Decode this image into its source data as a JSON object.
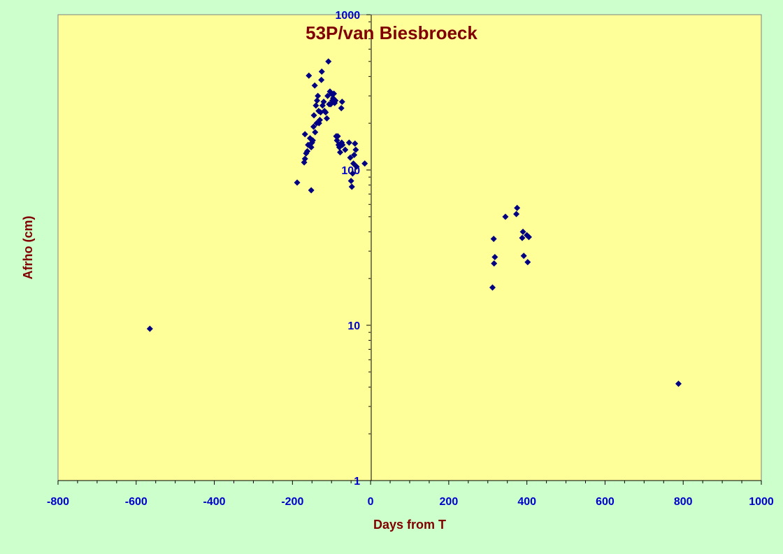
{
  "chart_data": {
    "type": "scatter",
    "title": "53P/van Biesbroeck",
    "xlabel": "Days from T",
    "ylabel": "Afrho (cm)",
    "xlim": [
      -800,
      1000
    ],
    "ylim": [
      1,
      1000
    ],
    "y_scale": "log",
    "grid": false,
    "x_ticks": [
      "-800",
      "-600",
      "-400",
      "-200",
      "0",
      "200",
      "400",
      "600",
      "800",
      "1000"
    ],
    "y_ticks": [
      "1",
      "10",
      "100",
      "1000"
    ],
    "colors": {
      "background": "#ccffcc",
      "plot_area": "#ffff99",
      "marker": "#000080",
      "title": "#800000",
      "ticks": "#0000cc"
    },
    "series": [
      {
        "points": [
          [
            -565,
            9.5
          ],
          [
            -188,
            83
          ],
          [
            -152,
            74
          ],
          [
            -168,
            170
          ],
          [
            -170,
            112
          ],
          [
            -168,
            118
          ],
          [
            -165,
            128
          ],
          [
            -162,
            132
          ],
          [
            -160,
            145
          ],
          [
            -158,
            405
          ],
          [
            -155,
            160
          ],
          [
            -152,
            140
          ],
          [
            -150,
            150
          ],
          [
            -148,
            155
          ],
          [
            -146,
            190
          ],
          [
            -145,
            225
          ],
          [
            -143,
            350
          ],
          [
            -142,
            175
          ],
          [
            -140,
            260
          ],
          [
            -138,
            200
          ],
          [
            -137,
            280
          ],
          [
            -135,
            300
          ],
          [
            -133,
            240
          ],
          [
            -132,
            200
          ],
          [
            -130,
            210
          ],
          [
            -128,
            235
          ],
          [
            -126,
            380
          ],
          [
            -125,
            430
          ],
          [
            -123,
            260
          ],
          [
            -120,
            275
          ],
          [
            -118,
            240
          ],
          [
            -115,
            235
          ],
          [
            -112,
            215
          ],
          [
            -110,
            300
          ],
          [
            -108,
            500
          ],
          [
            -106,
            265
          ],
          [
            -104,
            320
          ],
          [
            -102,
            265
          ],
          [
            -100,
            310
          ],
          [
            -98,
            280
          ],
          [
            -96,
            290
          ],
          [
            -94,
            310
          ],
          [
            -92,
            270
          ],
          [
            -90,
            280
          ],
          [
            -88,
            165
          ],
          [
            -86,
            155
          ],
          [
            -84,
            165
          ],
          [
            -82,
            145
          ],
          [
            -80,
            140
          ],
          [
            -78,
            130
          ],
          [
            -75,
            250
          ],
          [
            -74,
            150
          ],
          [
            -73,
            275
          ],
          [
            -72,
            145
          ],
          [
            -65,
            135
          ],
          [
            -55,
            150
          ],
          [
            -52,
            120
          ],
          [
            -50,
            85
          ],
          [
            -48,
            78
          ],
          [
            -46,
            95
          ],
          [
            -44,
            110
          ],
          [
            -42,
            125
          ],
          [
            -40,
            148
          ],
          [
            -38,
            135
          ],
          [
            -36,
            105
          ],
          [
            -15,
            110
          ],
          [
            312,
            17.5
          ],
          [
            315,
            36
          ],
          [
            316,
            25
          ],
          [
            318,
            27.5
          ],
          [
            345,
            50
          ],
          [
            373,
            52
          ],
          [
            375,
            57
          ],
          [
            388,
            36.5
          ],
          [
            390,
            40
          ],
          [
            392,
            28
          ],
          [
            400,
            38
          ],
          [
            402,
            25.5
          ],
          [
            405,
            37
          ],
          [
            788,
            4.2
          ]
        ]
      }
    ]
  }
}
